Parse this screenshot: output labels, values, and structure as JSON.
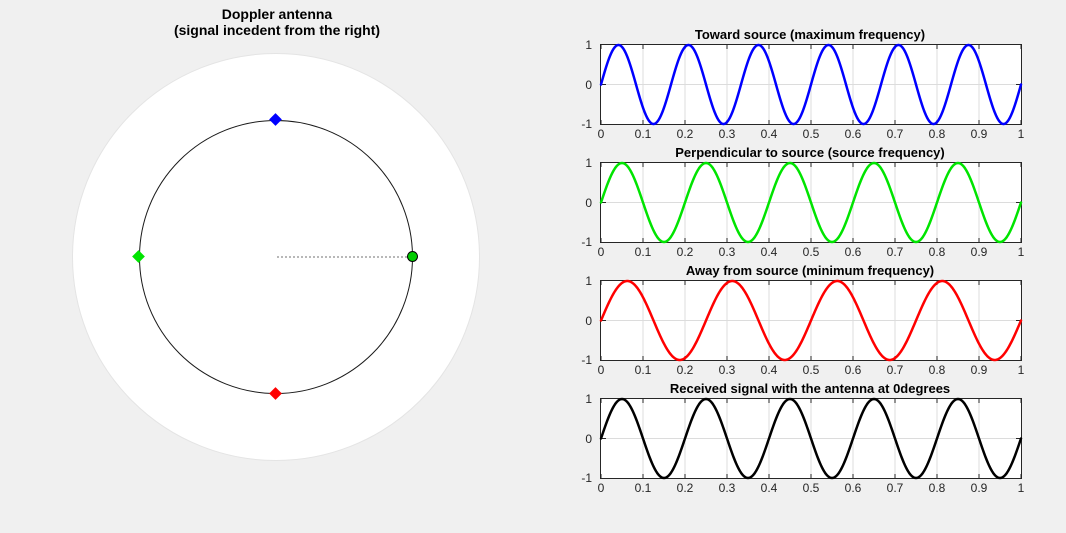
{
  "figure": {
    "bg_color": "#f0f0f0"
  },
  "antenna_diagram": {
    "title_line1": "Doppler antenna",
    "title_line2": "(signal incedent from the right)",
    "aperture_fill": "#ffffff",
    "rotation_path_color": "#1a1a1a",
    "pointer_line_color": "#b8b8b8",
    "markers": [
      {
        "id": "toward-source",
        "position": "top",
        "shape": "diamond",
        "color": "#0000ff"
      },
      {
        "id": "perpendicular",
        "position": "left",
        "shape": "diamond",
        "color": "#00e400"
      },
      {
        "id": "away-from-source",
        "position": "bottom",
        "shape": "diamond",
        "color": "#ff0000"
      },
      {
        "id": "antenna-position",
        "position": "right",
        "shape": "circle",
        "fill": "#00cc00",
        "edge": "#000000"
      }
    ]
  },
  "axes_style": {
    "border_color": "#262626",
    "tick_color": "#262626",
    "tick_label_color": "#262626",
    "grid_color": "#dcdcdc",
    "plot_bg": "#ffffff"
  },
  "chart_data": [
    {
      "type": "line",
      "title": "Toward source (maximum frequency)",
      "series": [
        {
          "name": "toward source",
          "waveform": "sine",
          "frequency_hz": 6,
          "amplitude": 1,
          "phase_deg": 0,
          "color": "#0000ff"
        }
      ],
      "xlim": [
        0,
        1
      ],
      "ylim": [
        -1,
        1
      ],
      "xticks": [
        0,
        0.1,
        0.2,
        0.3,
        0.4,
        0.5,
        0.6,
        0.7,
        0.8,
        0.9,
        1
      ],
      "xtick_labels": [
        "0",
        "0.1",
        "0.2",
        "0.3",
        "0.4",
        "0.5",
        "0.6",
        "0.7",
        "0.8",
        "0.9",
        "1"
      ],
      "yticks": [
        -1,
        0,
        1
      ],
      "ytick_labels": [
        "-1",
        "0",
        "1"
      ],
      "grid": true,
      "line_width": 2.5
    },
    {
      "type": "line",
      "title": "Perpendicular to source (source frequency)",
      "series": [
        {
          "name": "perpendicular to source",
          "waveform": "sine",
          "frequency_hz": 5,
          "amplitude": 1,
          "phase_deg": 0,
          "color": "#00e400"
        }
      ],
      "xlim": [
        0,
        1
      ],
      "ylim": [
        -1,
        1
      ],
      "xticks": [
        0,
        0.1,
        0.2,
        0.3,
        0.4,
        0.5,
        0.6,
        0.7,
        0.8,
        0.9,
        1
      ],
      "xtick_labels": [
        "0",
        "0.1",
        "0.2",
        "0.3",
        "0.4",
        "0.5",
        "0.6",
        "0.7",
        "0.8",
        "0.9",
        "1"
      ],
      "yticks": [
        -1,
        0,
        1
      ],
      "ytick_labels": [
        "-1",
        "0",
        "1"
      ],
      "grid": true,
      "line_width": 2.5
    },
    {
      "type": "line",
      "title": "Away from source (minimum frequency)",
      "series": [
        {
          "name": "away from source",
          "waveform": "sine",
          "frequency_hz": 4,
          "amplitude": 1,
          "phase_deg": 0,
          "color": "#ff0000"
        }
      ],
      "xlim": [
        0,
        1
      ],
      "ylim": [
        -1,
        1
      ],
      "xticks": [
        0,
        0.1,
        0.2,
        0.3,
        0.4,
        0.5,
        0.6,
        0.7,
        0.8,
        0.9,
        1
      ],
      "xtick_labels": [
        "0",
        "0.1",
        "0.2",
        "0.3",
        "0.4",
        "0.5",
        "0.6",
        "0.7",
        "0.8",
        "0.9",
        "1"
      ],
      "yticks": [
        -1,
        0,
        1
      ],
      "ytick_labels": [
        "-1",
        "0",
        "1"
      ],
      "grid": true,
      "line_width": 2.5
    },
    {
      "type": "line",
      "title": "Received signal with the antenna at 0degrees",
      "series": [
        {
          "name": "received signal",
          "waveform": "sine",
          "frequency_hz": 5,
          "amplitude": 1,
          "phase_deg": 0,
          "color": "#000000"
        }
      ],
      "xlim": [
        0,
        1
      ],
      "ylim": [
        -1,
        1
      ],
      "xticks": [
        0,
        0.1,
        0.2,
        0.3,
        0.4,
        0.5,
        0.6,
        0.7,
        0.8,
        0.9,
        1
      ],
      "xtick_labels": [
        "0",
        "0.1",
        "0.2",
        "0.3",
        "0.4",
        "0.5",
        "0.6",
        "0.7",
        "0.8",
        "0.9",
        "1"
      ],
      "yticks": [
        -1,
        0,
        1
      ],
      "ytick_labels": [
        "-1",
        "0",
        "1"
      ],
      "grid": true,
      "line_width": 2.5
    }
  ]
}
